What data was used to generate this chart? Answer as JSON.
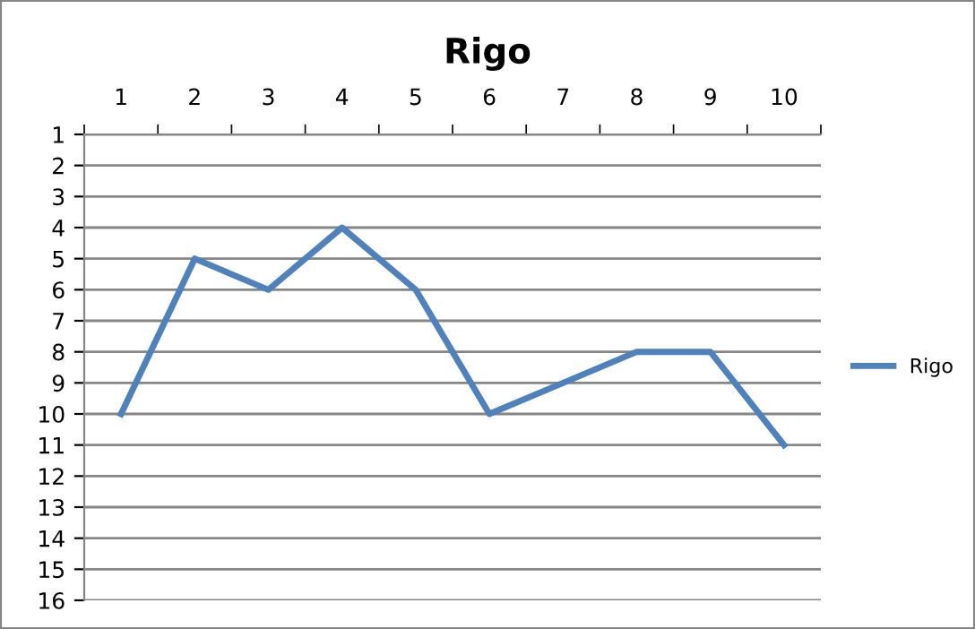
{
  "chart_data": {
    "type": "line",
    "title": "Rigo",
    "categories": [
      "1",
      "2",
      "3",
      "4",
      "5",
      "6",
      "7",
      "8",
      "9",
      "10"
    ],
    "series": [
      {
        "name": "Rigo",
        "color": "#4f81bd",
        "values": [
          10,
          5,
          6,
          4,
          6,
          10,
          9,
          8,
          8,
          11
        ]
      }
    ],
    "ylim": [
      16,
      1
    ],
    "yticks": [
      1,
      2,
      3,
      4,
      5,
      6,
      7,
      8,
      9,
      10,
      11,
      12,
      13,
      14,
      15,
      16
    ],
    "grid": "y",
    "legend": "right",
    "marker": "none",
    "line_style": "solid"
  }
}
